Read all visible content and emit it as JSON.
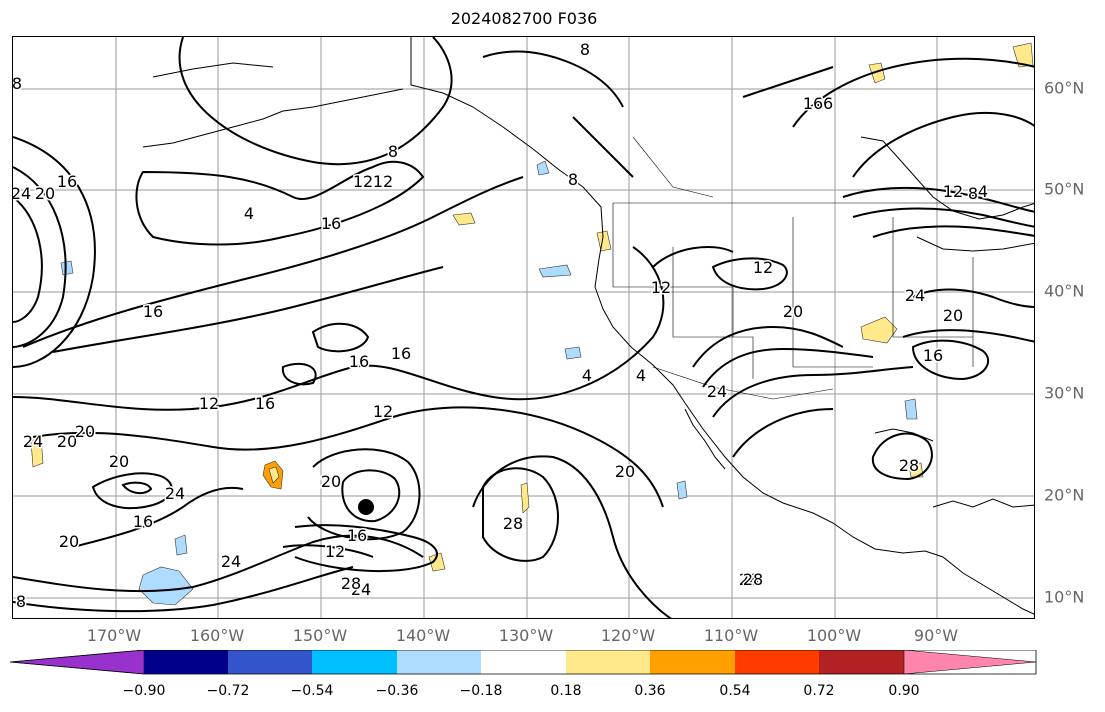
{
  "map": {
    "title": "2024082700 F036",
    "lon_labels": [
      "170°W",
      "160°W",
      "150°W",
      "140°W",
      "130°W",
      "120°W",
      "110°W",
      "100°W",
      "90°W"
    ],
    "lat_labels": [
      "60°N",
      "50°N",
      "40°N",
      "30°N",
      "20°N",
      "10°N"
    ],
    "contour_labels": [
      "8",
      "8",
      "16",
      "16",
      "24",
      "20",
      "16",
      "4",
      "16",
      "12",
      "8",
      "12",
      "8",
      "16",
      "12",
      "4",
      "8",
      "12",
      "12",
      "20",
      "24",
      "20",
      "16",
      "16",
      "16",
      "12",
      "16",
      "12",
      "20",
      "24",
      "4",
      "24",
      "20",
      "20",
      "28",
      "20",
      "24",
      "16",
      "12",
      "28",
      "24",
      "28",
      "28",
      "8",
      "28",
      "20",
      "24",
      "16",
      "20",
      "4"
    ],
    "colorbar": {
      "ticks": [
        "−0.90",
        "−0.72",
        "−0.54",
        "−0.36",
        "−0.18",
        "0.18",
        "0.36",
        "0.54",
        "0.72",
        "0.90"
      ],
      "colors": [
        "#9932cc",
        "#00008b",
        "#3355cc",
        "#00bfff",
        "#aedcff",
        "#ffffff",
        "#ffe98a",
        "#ff9f00",
        "#ff3c00",
        "#b22222",
        "#ff85aa"
      ]
    }
  }
}
